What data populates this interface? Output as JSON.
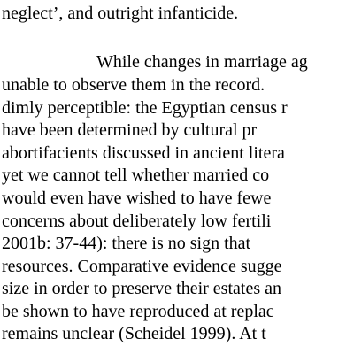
{
  "document": {
    "previous_paragraph_end": "neglect’, and outright infanticide.",
    "paragraph_lines": [
      "While changes in marriage ag",
      "unable to observe them in the record.",
      "dimly perceptible: the Egyptian census r",
      "have been determined by cultural pr",
      "abortifacients discussed in ancient litera",
      "yet we cannot tell whether married co",
      "would even have wished to have fewe",
      "concerns about deliberately low fertili",
      "2001b: 37-44): there is no sign that",
      "resources. Comparative evidence sugge",
      "size in order to preserve their estates an",
      "be shown to have reproduced at replac",
      "remains unclear (Scheidel 1999). At t"
    ]
  }
}
